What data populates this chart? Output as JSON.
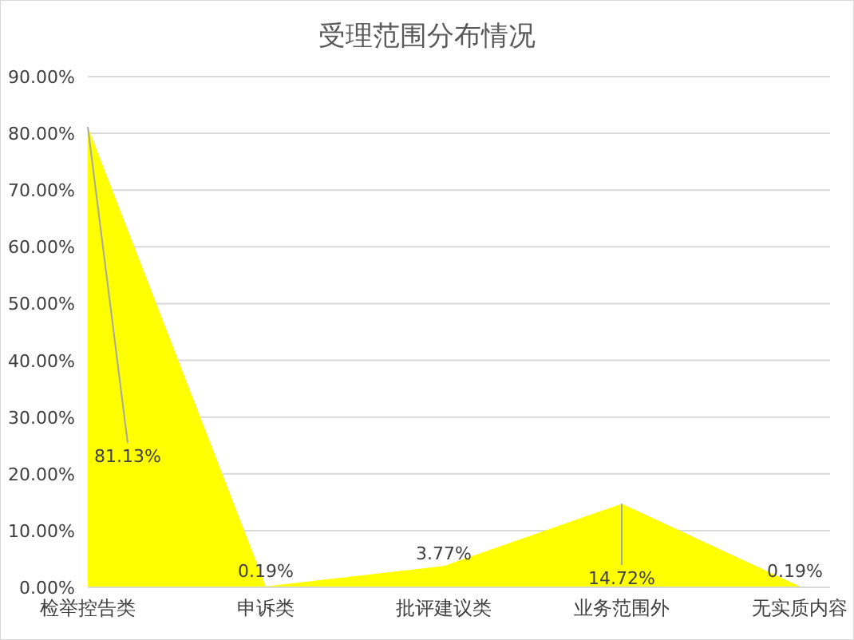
{
  "chart_data": {
    "type": "area",
    "title": "受理范围分布情况",
    "categories": [
      "检举控告类",
      "申诉类",
      "批评建议类",
      "业务范围外",
      "无实质内容"
    ],
    "values": [
      81.13,
      0.19,
      3.77,
      14.72,
      0.19
    ],
    "value_labels": [
      "81.13%",
      "0.19%",
      "3.77%",
      "14.72%",
      "0.19%"
    ],
    "color": "#ffff00",
    "ylim": [
      0,
      90
    ],
    "yticks": [
      {
        "value": 0,
        "label": "0.00%"
      },
      {
        "value": 10,
        "label": "10.00%"
      },
      {
        "value": 20,
        "label": "20.00%"
      },
      {
        "value": 30,
        "label": "30.00%"
      },
      {
        "value": 40,
        "label": "40.00%"
      },
      {
        "value": 50,
        "label": "50.00%"
      },
      {
        "value": 60,
        "label": "60.00%"
      },
      {
        "value": 70,
        "label": "70.00%"
      },
      {
        "value": 80,
        "label": "80.00%"
      },
      {
        "value": 90,
        "label": "90.00%"
      }
    ],
    "grid": "y"
  }
}
